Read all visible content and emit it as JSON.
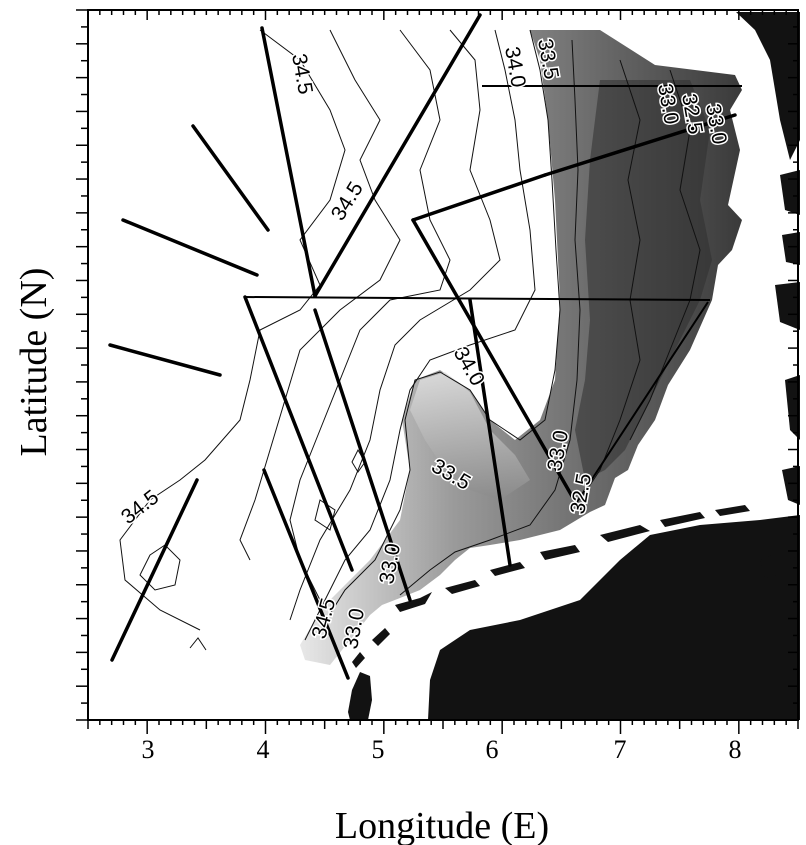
{
  "map": {
    "xlabel": "Longitude (E)",
    "ylabel": "Latitude (N)",
    "x_ticks": [
      "3",
      "4",
      "5",
      "6",
      "7",
      "8"
    ],
    "x_range": [
      2.5,
      8.5
    ],
    "contour_labels": [
      "34.5",
      "34.5",
      "34.5",
      "34.5",
      "34.0",
      "34.0",
      "33.5",
      "33.5",
      "33.0",
      "32.5",
      "33.0",
      "33.0",
      "32.5",
      "33.0",
      "33.0"
    ],
    "legend": "none",
    "colors": {
      "land": "#121212",
      "low_salinity": "#3a3a3a",
      "high_salinity": "#ffffff",
      "contour": "#111111",
      "transect": "#000000"
    }
  }
}
